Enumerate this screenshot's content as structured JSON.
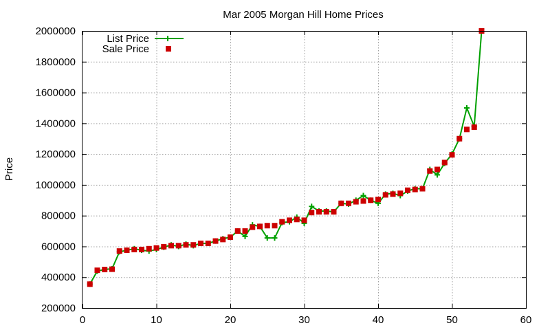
{
  "chart_data": {
    "type": "line",
    "title": "Mar 2005 Morgan Hill Home Prices",
    "xlabel": "",
    "ylabel": "Price",
    "xlim": [
      0,
      60
    ],
    "ylim": [
      200000,
      2000000
    ],
    "x_ticks": [
      0,
      10,
      20,
      30,
      40,
      50,
      60
    ],
    "y_ticks": [
      200000,
      400000,
      600000,
      800000,
      1000000,
      1200000,
      1400000,
      1600000,
      1800000,
      2000000
    ],
    "x_tick_labels": [
      "0",
      "10",
      "20",
      "30",
      "40",
      "50",
      "60"
    ],
    "y_tick_labels": [
      "200000",
      "400000",
      "600000",
      "800000",
      "1000000",
      "1200000",
      "1400000",
      "1600000",
      "1800000",
      "2000000"
    ],
    "grid": true,
    "legend_position": "top-left",
    "x": [
      1,
      2,
      3,
      4,
      5,
      6,
      7,
      8,
      9,
      10,
      11,
      12,
      13,
      14,
      15,
      16,
      17,
      18,
      19,
      20,
      21,
      22,
      23,
      24,
      25,
      26,
      27,
      28,
      29,
      30,
      31,
      32,
      33,
      34,
      35,
      36,
      37,
      38,
      39,
      40,
      41,
      42,
      43,
      44,
      45,
      46,
      47,
      48,
      49,
      50,
      51,
      52,
      53,
      54
    ],
    "series": [
      {
        "name": "List Price",
        "style": "line-plus",
        "color": "#00a000",
        "values": [
          355000,
          440000,
          450000,
          455000,
          565000,
          575000,
          585000,
          575000,
          570000,
          580000,
          595000,
          610000,
          600000,
          615000,
          605000,
          620000,
          620000,
          635000,
          650000,
          660000,
          700000,
          665000,
          740000,
          730000,
          655000,
          655000,
          755000,
          760000,
          790000,
          750000,
          860000,
          830000,
          830000,
          825000,
          880000,
          875000,
          900000,
          930000,
          900000,
          880000,
          940000,
          945000,
          930000,
          960000,
          975000,
          975000,
          1100000,
          1065000,
          1140000,
          1200000,
          1300000,
          1500000,
          1380000,
          2000000
        ]
      },
      {
        "name": "Sale Price",
        "style": "square-points",
        "color": "#cc0000",
        "values": [
          355000,
          445000,
          450000,
          452000,
          570000,
          575000,
          580000,
          580000,
          585000,
          590000,
          598000,
          605000,
          605000,
          610000,
          610000,
          620000,
          620000,
          635000,
          645000,
          660000,
          700000,
          700000,
          725000,
          730000,
          735000,
          735000,
          760000,
          770000,
          775000,
          770000,
          820000,
          825000,
          825000,
          825000,
          880000,
          880000,
          890000,
          895000,
          900000,
          905000,
          935000,
          940000,
          945000,
          965000,
          970000,
          975000,
          1090000,
          1100000,
          1145000,
          1195000,
          1300000,
          1360000,
          1375000,
          2000000
        ]
      }
    ]
  }
}
